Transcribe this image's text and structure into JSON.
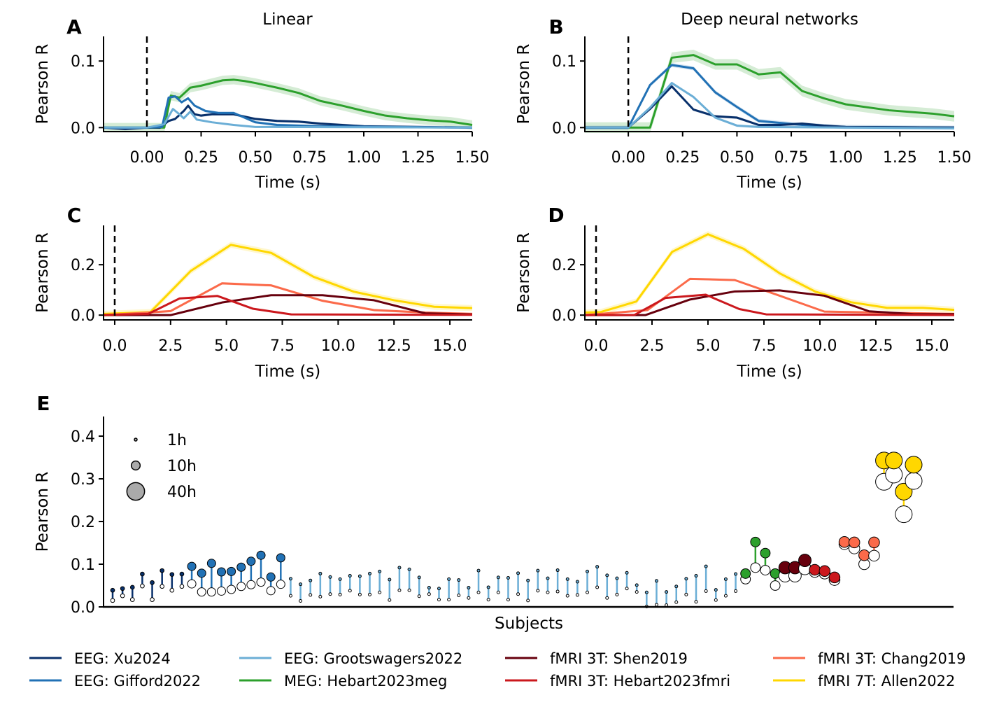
{
  "colors": {
    "Xu2024": "#08306b",
    "Gifford2022": "#2171b5",
    "Grootswagers2022": "#6baed6",
    "Hebart2023meg": "#2ca02c",
    "Shen2019": "#67000d",
    "Hebart2023fmri": "#cb181d",
    "Chang2019": "#fb6a4a",
    "Allen2022": "#ffd700"
  },
  "legend": [
    {
      "key": "Xu2024",
      "label": "EEG: Xu2024"
    },
    {
      "key": "Gifford2022",
      "label": "EEG: Gifford2022"
    },
    {
      "key": "Grootswagers2022",
      "label": "EEG: Grootswagers2022"
    },
    {
      "key": "Hebart2023meg",
      "label": "MEG: Hebart2023meg"
    },
    {
      "key": "Shen2019",
      "label": "fMRI 3T: Shen2019"
    },
    {
      "key": "Hebart2023fmri",
      "label": "fMRI 3T: Hebart2023fmri"
    },
    {
      "key": "Chang2019",
      "label": "fMRI 3T: Chang2019"
    },
    {
      "key": "Allen2022",
      "label": "fMRI 7T: Allen2022"
    }
  ],
  "chart_data": [
    {
      "panel": "A",
      "title": "Linear",
      "type": "line",
      "xlabel": "Time (s)",
      "ylabel": "Pearson R",
      "xlim": [
        -0.2,
        1.5
      ],
      "ylim": [
        -0.006,
        0.137
      ],
      "xticks": [
        0,
        0.25,
        0.5,
        0.75,
        1.0,
        1.25,
        1.5
      ],
      "xtick_labels": [
        "0.00",
        "0.25",
        "0.50",
        "0.75",
        "1.00",
        "1.25",
        "1.50"
      ],
      "yticks": [
        0,
        0.1
      ],
      "ytick_labels": [
        "0.0",
        "0.1"
      ],
      "onset_line": 0,
      "series": [
        {
          "key": "Hebart2023meg",
          "band": 0.007,
          "x": [
            -0.2,
            0.05,
            0.08,
            0.11,
            0.15,
            0.2,
            0.25,
            0.3,
            0.35,
            0.4,
            0.45,
            0.5,
            0.6,
            0.7,
            0.8,
            0.9,
            1.0,
            1.1,
            1.2,
            1.3,
            1.4,
            1.5
          ],
          "y": [
            0,
            0,
            0,
            0.048,
            0.045,
            0.06,
            0.063,
            0.067,
            0.071,
            0.072,
            0.07,
            0.067,
            0.06,
            0.052,
            0.04,
            0.033,
            0.025,
            0.018,
            0.014,
            0.011,
            0.009,
            0.004
          ]
        },
        {
          "key": "Xu2024",
          "band": 0.002,
          "x": [
            -0.2,
            -0.1,
            0,
            0.06,
            0.1,
            0.13,
            0.17,
            0.19,
            0.22,
            0.25,
            0.3,
            0.4,
            0.5,
            0.6,
            0.7,
            0.8,
            0.9,
            1.0,
            1.5
          ],
          "y": [
            0,
            -0.002,
            0,
            0,
            0.01,
            0.013,
            0.025,
            0.033,
            0.02,
            0.018,
            0.02,
            0.02,
            0.013,
            0.01,
            0.009,
            0.006,
            0.004,
            0.002,
            0
          ]
        },
        {
          "key": "Gifford2022",
          "band": 0.002,
          "x": [
            -0.2,
            0,
            0.07,
            0.1,
            0.13,
            0.16,
            0.19,
            0.22,
            0.27,
            0.33,
            0.4,
            0.45,
            0.5,
            0.6,
            0.8,
            1.5
          ],
          "y": [
            0,
            0,
            0.001,
            0.045,
            0.047,
            0.038,
            0.044,
            0.033,
            0.025,
            0.022,
            0.022,
            0.015,
            0.008,
            0.004,
            0.002,
            0
          ]
        },
        {
          "key": "Grootswagers2022",
          "band": 0.001,
          "x": [
            -0.2,
            0,
            0.08,
            0.12,
            0.15,
            0.17,
            0.2,
            0.23,
            0.3,
            0.4,
            0.5,
            1.5
          ],
          "y": [
            0,
            0,
            0.005,
            0.028,
            0.02,
            0.014,
            0.024,
            0.012,
            0.008,
            0.004,
            0.001,
            0
          ]
        }
      ]
    },
    {
      "panel": "B",
      "title": "Deep neural networks",
      "type": "line",
      "xlabel": "Time (s)",
      "ylabel": "Pearson R",
      "xlim": [
        -0.2,
        1.5
      ],
      "ylim": [
        -0.006,
        0.137
      ],
      "xticks": [
        0,
        0.25,
        0.5,
        0.75,
        1.0,
        1.25,
        1.5
      ],
      "xtick_labels": [
        "0.00",
        "0.25",
        "0.50",
        "0.75",
        "1.00",
        "1.25",
        "1.50"
      ],
      "yticks": [
        0,
        0.1
      ],
      "ytick_labels": [
        "0.0",
        "0.1"
      ],
      "onset_line": 0,
      "series": [
        {
          "key": "Hebart2023meg",
          "band": 0.008,
          "x": [
            -0.2,
            0,
            0.1,
            0.2,
            0.3,
            0.4,
            0.5,
            0.6,
            0.7,
            0.8,
            0.9,
            1.0,
            1.2,
            1.4,
            1.5
          ],
          "y": [
            0,
            0,
            0,
            0.105,
            0.109,
            0.095,
            0.095,
            0.08,
            0.083,
            0.055,
            0.044,
            0.035,
            0.026,
            0.021,
            0.017
          ]
        },
        {
          "key": "Gifford2022",
          "band": 0.003,
          "x": [
            -0.2,
            0,
            0.1,
            0.2,
            0.3,
            0.4,
            0.5,
            0.6,
            0.7,
            0.8,
            1.0,
            1.5
          ],
          "y": [
            0,
            0,
            0.064,
            0.094,
            0.089,
            0.053,
            0.031,
            0.01,
            0.007,
            0.004,
            0.001,
            0
          ]
        },
        {
          "key": "Xu2024",
          "band": 0.002,
          "x": [
            -0.2,
            0,
            0.1,
            0.2,
            0.3,
            0.4,
            0.5,
            0.6,
            0.7,
            0.8,
            0.9,
            1.0,
            1.5
          ],
          "y": [
            0,
            0,
            0.028,
            0.062,
            0.027,
            0.017,
            0.015,
            0.004,
            0.004,
            0.006,
            0.003,
            0.001,
            0
          ]
        },
        {
          "key": "Grootswagers2022",
          "band": 0.002,
          "x": [
            -0.2,
            0,
            0.1,
            0.2,
            0.3,
            0.4,
            0.5,
            0.6,
            1.5
          ],
          "y": [
            0,
            0,
            0.03,
            0.067,
            0.046,
            0.015,
            0.003,
            0.001,
            -0.001
          ]
        }
      ]
    },
    {
      "panel": "C",
      "type": "line",
      "xlabel": "Time (s)",
      "ylabel": "Pearson R",
      "xlim": [
        -0.5,
        16.0
      ],
      "ylim": [
        -0.019,
        0.356
      ],
      "xticks": [
        0,
        2.5,
        5,
        7.5,
        10,
        12.5,
        15
      ],
      "xtick_labels": [
        "0.0",
        "2.5",
        "5.0",
        "7.5",
        "10.0",
        "12.5",
        "15.0"
      ],
      "yticks": [
        0,
        0.2
      ],
      "ytick_labels": [
        "0.0",
        "0.2"
      ],
      "onset_line": 0,
      "series": [
        {
          "key": "Allen2022",
          "band": 0.012,
          "x": [
            -0.5,
            1.6,
            3.4,
            5.2,
            7.0,
            8.9,
            10.7,
            12.5,
            14.3,
            16.0
          ],
          "y": [
            0.005,
            0.012,
            0.175,
            0.279,
            0.247,
            0.152,
            0.093,
            0.059,
            0.033,
            0.028
          ]
        },
        {
          "key": "Chang2019",
          "band": 0.005,
          "x": [
            -0.5,
            1.5,
            2.5,
            4.8,
            7.0,
            9.3,
            11.6,
            13.9,
            16.0
          ],
          "y": [
            0,
            0.01,
            0.016,
            0.126,
            0.118,
            0.057,
            0.02,
            0.01,
            0.005
          ]
        },
        {
          "key": "Shen2019",
          "band": 0.002,
          "x": [
            -0.5,
            2.5,
            4.8,
            7.0,
            9.3,
            11.6,
            13.9,
            16.0
          ],
          "y": [
            0,
            0,
            0.05,
            0.079,
            0.079,
            0.059,
            0.007,
            0.003
          ]
        },
        {
          "key": "Hebart2023fmri",
          "band": 0.002,
          "x": [
            -0.5,
            1.5,
            2.9,
            4.6,
            6.2,
            7.9,
            16.0
          ],
          "y": [
            0,
            0.005,
            0.066,
            0.076,
            0.025,
            0.003,
            0.001
          ]
        }
      ]
    },
    {
      "panel": "D",
      "type": "line",
      "xlabel": "Time (s)",
      "ylabel": "Pearson R",
      "xlim": [
        -0.5,
        16.0
      ],
      "ylim": [
        -0.019,
        0.356
      ],
      "xticks": [
        0,
        2.5,
        5,
        7.5,
        10,
        12.5,
        15
      ],
      "xtick_labels": [
        "0.0",
        "2.5",
        "5.0",
        "7.5",
        "10.0",
        "12.5",
        "15.0"
      ],
      "yticks": [
        0,
        0.2
      ],
      "ytick_labels": [
        "0.0",
        "0.2"
      ],
      "onset_line": 0,
      "series": [
        {
          "key": "Allen2022",
          "band": 0.012,
          "x": [
            -0.5,
            0.2,
            1.8,
            3.4,
            5.0,
            6.6,
            8.2,
            9.8,
            11.4,
            13.0,
            14.6,
            16.0
          ],
          "y": [
            0.01,
            0.012,
            0.054,
            0.251,
            0.321,
            0.263,
            0.166,
            0.093,
            0.051,
            0.029,
            0.029,
            0.021
          ]
        },
        {
          "key": "Chang2019",
          "band": 0.004,
          "x": [
            -0.5,
            2.3,
            4.2,
            6.2,
            8.2,
            10.2,
            16.0
          ],
          "y": [
            0,
            0.02,
            0.144,
            0.139,
            0.077,
            0.014,
            0.005
          ]
        },
        {
          "key": "Shen2019",
          "band": 0.002,
          "x": [
            -0.5,
            2.2,
            4.2,
            6.2,
            8.2,
            10.2,
            12.2,
            14.2,
            16.0
          ],
          "y": [
            0,
            0,
            0.062,
            0.094,
            0.098,
            0.077,
            0.015,
            0.004,
            0.004
          ]
        },
        {
          "key": "Hebart2023fmri",
          "band": 0.002,
          "x": [
            -0.5,
            1.7,
            3.1,
            4.9,
            6.4,
            7.6,
            16.0
          ],
          "y": [
            0,
            0,
            0.068,
            0.081,
            0.024,
            0.003,
            0
          ]
        }
      ]
    },
    {
      "panel": "E",
      "type": "scatter",
      "xlabel": "Subjects",
      "ylabel": "Pearson R",
      "ylim": [
        0,
        0.446
      ],
      "yticks": [
        0,
        0.1,
        0.2,
        0.3,
        0.4
      ],
      "ytick_labels": [
        "0.0",
        "0.1",
        "0.2",
        "0.3",
        "0.4"
      ],
      "size_legend": [
        {
          "hours": 1,
          "label": "1h"
        },
        {
          "hours": 10,
          "label": "10h"
        },
        {
          "hours": 40,
          "label": "40h"
        }
      ],
      "groups": [
        {
          "key": "Xu2024",
          "hours": 2,
          "filled": [
            0.039,
            0.043,
            0.046,
            0.077,
            0.057,
            0.085,
            0.076,
            0.077
          ],
          "open": [
            0.015,
            0.026,
            0.017,
            0.049,
            0.017,
            0.048,
            0.039,
            0.048
          ]
        },
        {
          "key": "Gifford2022",
          "hours": 9,
          "filled": [
            0.095,
            0.079,
            0.102,
            0.082,
            0.083,
            0.093,
            0.107,
            0.121,
            0.07,
            0.115
          ],
          "open": [
            0.054,
            0.035,
            0.035,
            0.037,
            0.041,
            0.048,
            0.052,
            0.058,
            0.038,
            0.053
          ]
        },
        {
          "key": "Grootswagers2022",
          "hours": 1,
          "filled": [
            0.066,
            0.053,
            0.062,
            0.078,
            0.07,
            0.065,
            0.073,
            0.072,
            0.078,
            0.083,
            0.064,
            0.092,
            0.088,
            0.069,
            0.045,
            0.043,
            0.065,
            0.063,
            0.045,
            0.085,
            0.046,
            0.069,
            0.068,
            0.079,
            0.062,
            0.085,
            0.067,
            0.086,
            0.065,
            0.059,
            0.083,
            0.094,
            0.074,
            0.067,
            0.08,
            0.051,
            0.034,
            0.061,
            0.035,
            0.048,
            0.066,
            0.073,
            0.095,
            0.04,
            0.065,
            0.077
          ],
          "open": [
            0.026,
            0.014,
            0.028,
            0.024,
            0.03,
            0.029,
            0.038,
            0.029,
            0.029,
            0.034,
            0.016,
            0.039,
            0.039,
            0.025,
            0.03,
            0.017,
            0.017,
            0.027,
            0.021,
            0.034,
            0.017,
            0.034,
            0.017,
            0.03,
            0.015,
            0.038,
            0.034,
            0.036,
            0.026,
            0.028,
            0.034,
            0.046,
            0.021,
            0.029,
            0.043,
            0.035,
            0.001,
            0.005,
            0.004,
            0.011,
            0.029,
            0.012,
            0.037,
            0.016,
            0.026,
            0.037
          ]
        },
        {
          "key": "Hebart2023meg",
          "hours": 12,
          "filled": [
            0.078,
            0.152,
            0.126,
            0.078
          ],
          "open": [
            0.065,
            0.092,
            0.086,
            0.05
          ]
        },
        {
          "key": "Shen2019",
          "hours": 20,
          "filled": [
            0.092,
            0.092,
            0.109
          ],
          "open": [
            0.073,
            0.073,
            0.09
          ]
        },
        {
          "key": "Hebart2023fmri",
          "hours": 15,
          "filled": [
            0.087,
            0.084,
            0.069
          ],
          "open": [
            0.082,
            0.078,
            0.063
          ]
        },
        {
          "key": "Chang2019",
          "hours": 15,
          "filled": [
            0.152,
            0.151,
            0.121,
            0.151
          ],
          "open": [
            0.147,
            0.137,
            0.1,
            0.12
          ]
        },
        {
          "key": "Allen2022",
          "hours": 36,
          "filled": [
            0.343,
            0.343,
            0.27,
            0.333
          ],
          "open": [
            0.293,
            0.31,
            0.217,
            0.295
          ]
        }
      ]
    }
  ]
}
